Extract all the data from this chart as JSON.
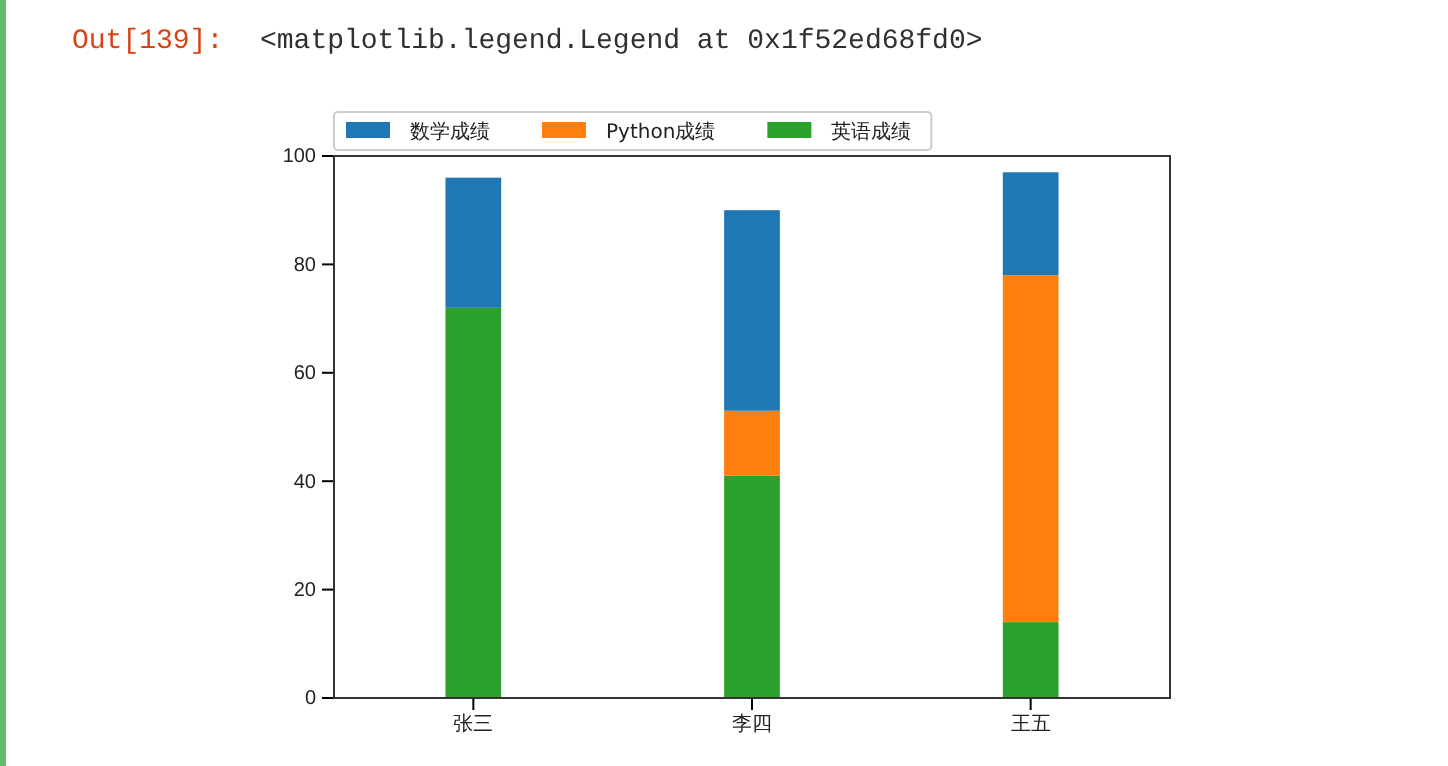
{
  "chart_data": {
    "type": "bar",
    "stacked": true,
    "annotations": [
      "Out[139]:",
      "<matplotlib.legend.Legend at 0x1f52ed68fd0>"
    ],
    "categories": [
      "张三",
      "李四",
      "王五"
    ],
    "series": [
      {
        "name": "英语成绩",
        "color": "#2ca02c",
        "values": [
          72,
          41,
          14
        ]
      },
      {
        "name": "Python成绩",
        "color": "#ff7f0e",
        "values": [
          null,
          12,
          64
        ]
      },
      {
        "name": "数学成绩",
        "color": "#1f77b4",
        "values": [
          24,
          37,
          19
        ]
      }
    ],
    "ylim": [
      0,
      100
    ],
    "yticks": [
      0,
      20,
      40,
      60,
      80,
      100
    ],
    "grid": false,
    "legend": "top left"
  }
}
